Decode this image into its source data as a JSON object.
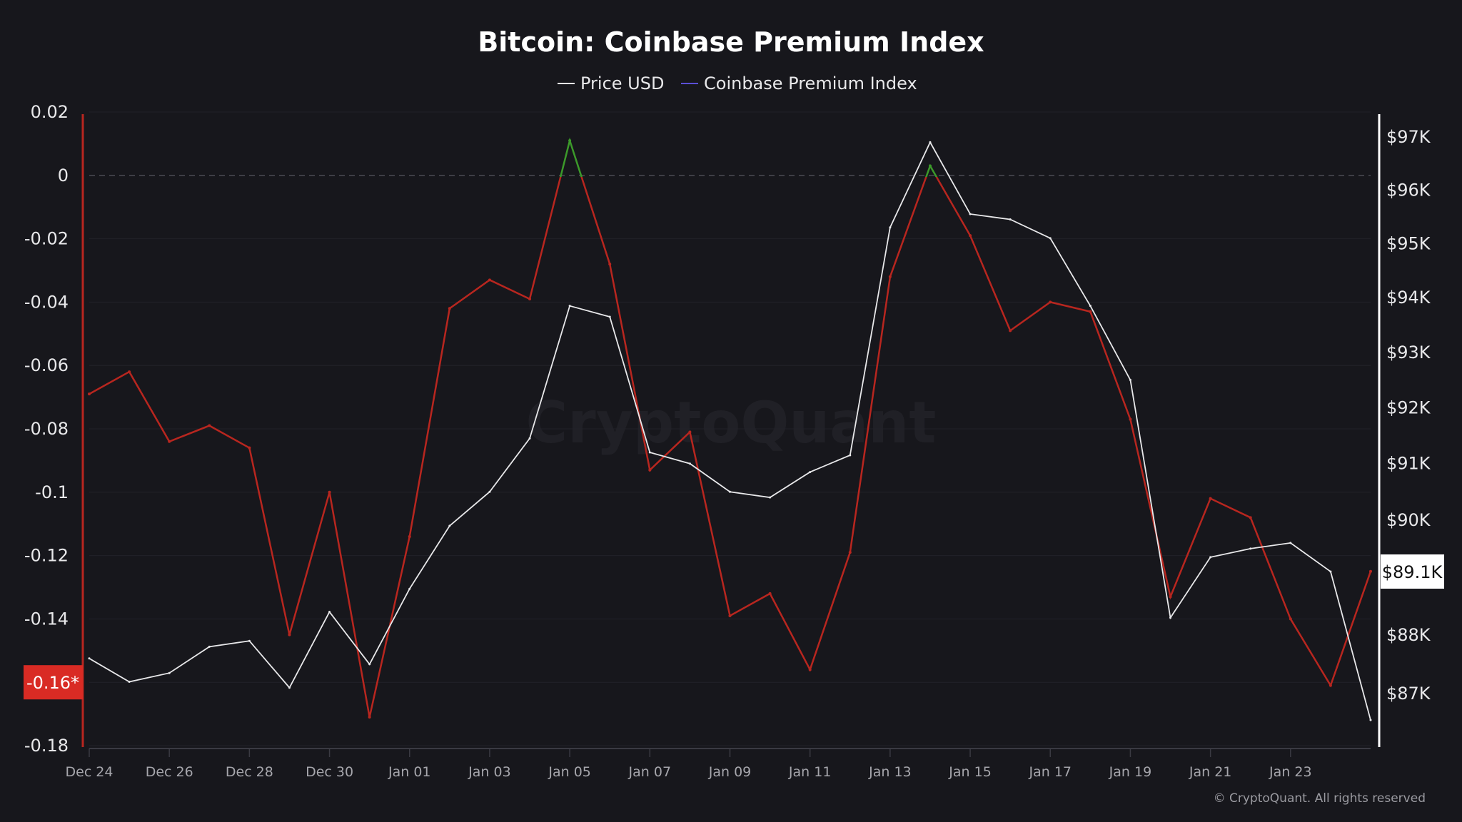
{
  "chart_data": {
    "type": "line",
    "title": "Bitcoin: Coinbase Premium Index",
    "legend": {
      "placement": "top-center",
      "entries": [
        "Price USD",
        "Coinbase Premium Index"
      ]
    },
    "legend_colors": [
      "#e8e8ea",
      "#5b4fd6"
    ],
    "x": [
      "Dec 24",
      "Dec 25",
      "Dec 26",
      "Dec 27",
      "Dec 28",
      "Dec 29",
      "Dec 30",
      "Dec 31",
      "Jan 01",
      "Jan 02",
      "Jan 03",
      "Jan 04",
      "Jan 05",
      "Jan 06",
      "Jan 07",
      "Jan 08",
      "Jan 09",
      "Jan 10",
      "Jan 11",
      "Jan 12",
      "Jan 13",
      "Jan 14",
      "Jan 15",
      "Jan 16",
      "Jan 17",
      "Jan 18",
      "Jan 19",
      "Jan 20",
      "Jan 21",
      "Jan 22",
      "Jan 23",
      "Jan 24",
      "Jan 25"
    ],
    "x_tick_labels": [
      "Dec 24",
      "Dec 26",
      "Dec 28",
      "Dec 30",
      "Jan 01",
      "Jan 03",
      "Jan 05",
      "Jan 07",
      "Jan 09",
      "Jan 11",
      "Jan 13",
      "Jan 15",
      "Jan 17",
      "Jan 19",
      "Jan 21",
      "Jan 23"
    ],
    "series": [
      {
        "name": "Coinbase Premium Index",
        "axis": "left",
        "color_negative": "#b8261f",
        "color_positive": "#3c9a2a",
        "values": [
          -0.069,
          -0.062,
          -0.084,
          -0.079,
          -0.086,
          -0.145,
          -0.1,
          -0.171,
          -0.114,
          -0.042,
          -0.033,
          -0.039,
          0.011,
          -0.028,
          -0.093,
          -0.081,
          -0.139,
          -0.132,
          -0.156,
          -0.119,
          -0.032,
          0.003,
          -0.019,
          -0.049,
          -0.04,
          -0.043,
          -0.077,
          -0.133,
          -0.102,
          -0.108,
          -0.14,
          -0.161,
          -0.125
        ]
      },
      {
        "name": "Price USD",
        "axis": "right",
        "color": "#e8e8ea",
        "values": [
          87600,
          87200,
          87350,
          87800,
          87900,
          87100,
          88400,
          87500,
          88800,
          89900,
          90500,
          91450,
          93850,
          93650,
          91200,
          91000,
          90500,
          90400,
          90850,
          91150,
          95300,
          96900,
          95550,
          95450,
          95100,
          93850,
          92500,
          88300,
          89350,
          89500,
          89600,
          89100,
          86550
        ]
      }
    ],
    "y_left": {
      "ylim": [
        -0.18,
        0.02
      ],
      "ticks": [
        0.02,
        0,
        -0.02,
        -0.04,
        -0.06,
        -0.08,
        -0.1,
        -0.12,
        -0.14,
        -0.16,
        -0.18
      ],
      "tick_labels": [
        "0.02",
        "0",
        "-0.02",
        "-0.04",
        "-0.06",
        "-0.08",
        "-0.1",
        "-0.12",
        "-0.14",
        "",
        "-0.18"
      ],
      "current_label": "-0.16*",
      "current_value": -0.16,
      "current_color": "#d92b24"
    },
    "y_right": {
      "scale": "log",
      "ticks": [
        97000,
        96000,
        95000,
        94000,
        93000,
        92000,
        91000,
        90000,
        88000,
        87000
      ],
      "tick_labels": [
        "$97K",
        "$96K",
        "$95K",
        "$94K",
        "$93K",
        "$92K",
        "$91K",
        "$90K",
        "$88K",
        "$87K"
      ],
      "current_label": "$89.1K",
      "current_value": 89100
    },
    "zero_line": "dashed",
    "grid": true,
    "watermark": "CryptoQuant",
    "copyright": "© CryptoQuant. All rights reserved"
  }
}
